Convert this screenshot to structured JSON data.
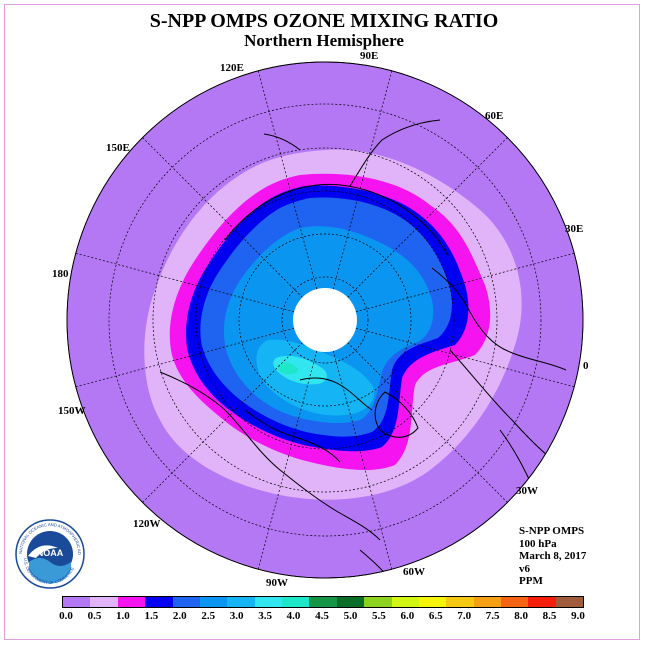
{
  "header": {
    "title": "S-NPP OMPS OZONE MIXING RATIO",
    "subtitle": "Northern Hemisphere"
  },
  "longitude_labels": [
    "90E",
    "60E",
    "30E",
    "0",
    "30W",
    "60W",
    "90W",
    "120W",
    "150W",
    "180",
    "150E",
    "120E"
  ],
  "info": {
    "instrument": "S-NPP OMPS",
    "level": "100 hPa",
    "date": "March 8, 2017",
    "version": "v6",
    "units": "PPM"
  },
  "colorbar": {
    "ticks": [
      "0.0",
      "0.5",
      "1.0",
      "1.5",
      "2.0",
      "2.5",
      "3.0",
      "3.5",
      "4.0",
      "4.5",
      "5.0",
      "5.5",
      "6.0",
      "6.5",
      "7.0",
      "7.5",
      "8.0",
      "8.5",
      "9.0"
    ],
    "colors": [
      "#b478f5",
      "#e1b4fa",
      "#f514f0",
      "#0000f0",
      "#1e64f0",
      "#0a96f0",
      "#14b4f5",
      "#32e6f0",
      "#1ee6c8",
      "#149646",
      "#0a6e28",
      "#8cd21e",
      "#d2f514",
      "#f5f50a",
      "#f5c814",
      "#f5a014",
      "#f56414",
      "#f51e0a",
      "#a05a3c"
    ]
  },
  "logo": {
    "text": "NOAA",
    "ring_text": "NATIONAL OCEANIC AND ATMOSPHERIC ADMINISTRATION",
    "bottom_text": "U.S. DEPARTMENT OF COMMERCE"
  }
}
